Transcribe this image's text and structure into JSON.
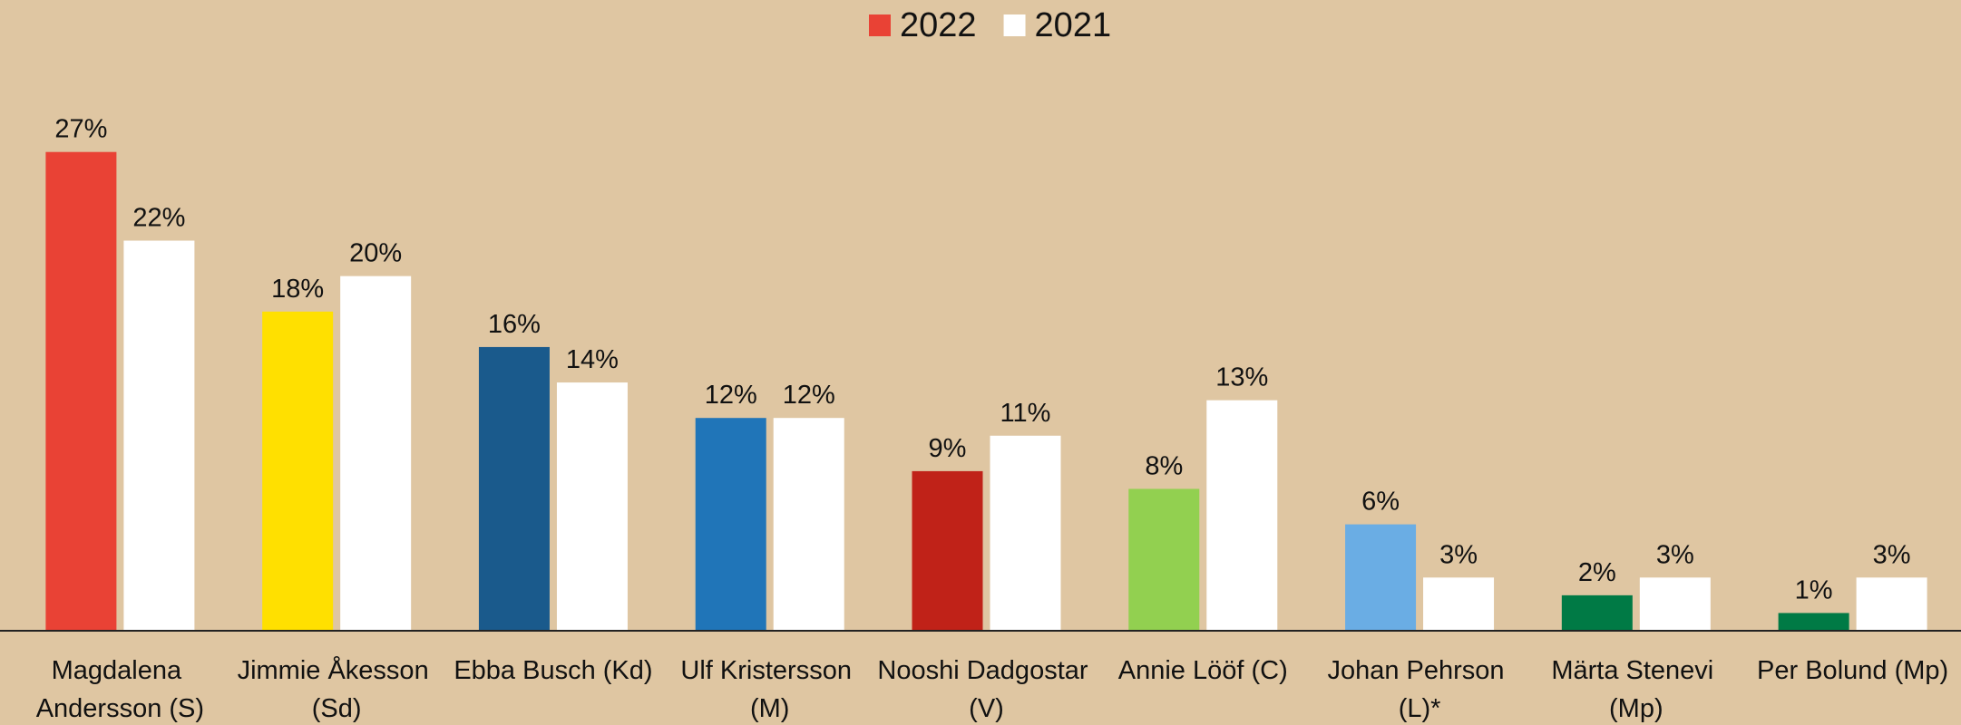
{
  "chart_data": {
    "type": "bar",
    "categories": [
      "Magdalena Andersson (S)",
      "Jimmie Åkesson (Sd)",
      "Ebba Busch (Kd)",
      "Ulf Kristersson (M)",
      "Nooshi Dadgostar (V)",
      "Annie Lööf (C)",
      "Johan Pehrson (L)*",
      "Märta Stenevi (Mp)",
      "Per Bolund (Mp)"
    ],
    "series": [
      {
        "name": "2022",
        "color": "#e94235",
        "bar_colors": [
          "#e94235",
          "#ffe000",
          "#1a5a8c",
          "#2075b8",
          "#c02218",
          "#92d050",
          "#6aade4",
          "#007a45",
          "#007a45"
        ],
        "values": [
          27,
          18,
          16,
          12,
          9,
          8,
          6,
          2,
          1
        ],
        "value_labels": [
          "27%",
          "18%",
          "16%",
          "12%",
          "9%",
          "8%",
          "6%",
          "2%",
          "1%"
        ]
      },
      {
        "name": "2021",
        "color": "#ffffff",
        "values": [
          22,
          20,
          14,
          12,
          11,
          13,
          3,
          3,
          3
        ],
        "value_labels": [
          "22%",
          "20%",
          "14%",
          "12%",
          "11%",
          "13%",
          "3%",
          "3%",
          "3%"
        ]
      }
    ],
    "ylim": [
      0,
      30
    ],
    "legend": "top"
  }
}
